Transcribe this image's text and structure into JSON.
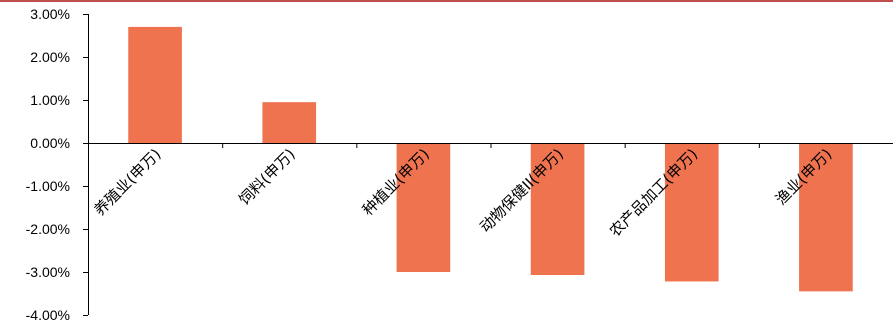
{
  "colors": {
    "bar": "#F07350",
    "axis": "#000000",
    "top_rule": "#C0504D"
  },
  "chart_data": {
    "type": "bar",
    "title": "",
    "xlabel": "",
    "ylabel": "",
    "categories": [
      "养殖业(申万)",
      "饲料(申万)",
      "种植业(申万)",
      "动物保健II(申万)",
      "农产品加工(申万)",
      "渔业(申万)"
    ],
    "values": [
      2.7,
      0.95,
      -3.0,
      -3.07,
      -3.22,
      -3.45
    ],
    "ylim": [
      -4.0,
      3.0
    ],
    "yticks": [
      3.0,
      2.0,
      1.0,
      0.0,
      -1.0,
      -2.0,
      -3.0,
      -4.0
    ],
    "ytick_labels": [
      "3.00%",
      "2.00%",
      "1.00%",
      "0.00%",
      "-1.00%",
      "-2.00%",
      "-3.00%",
      "-4.00%"
    ],
    "grid": false,
    "legend": "none"
  }
}
